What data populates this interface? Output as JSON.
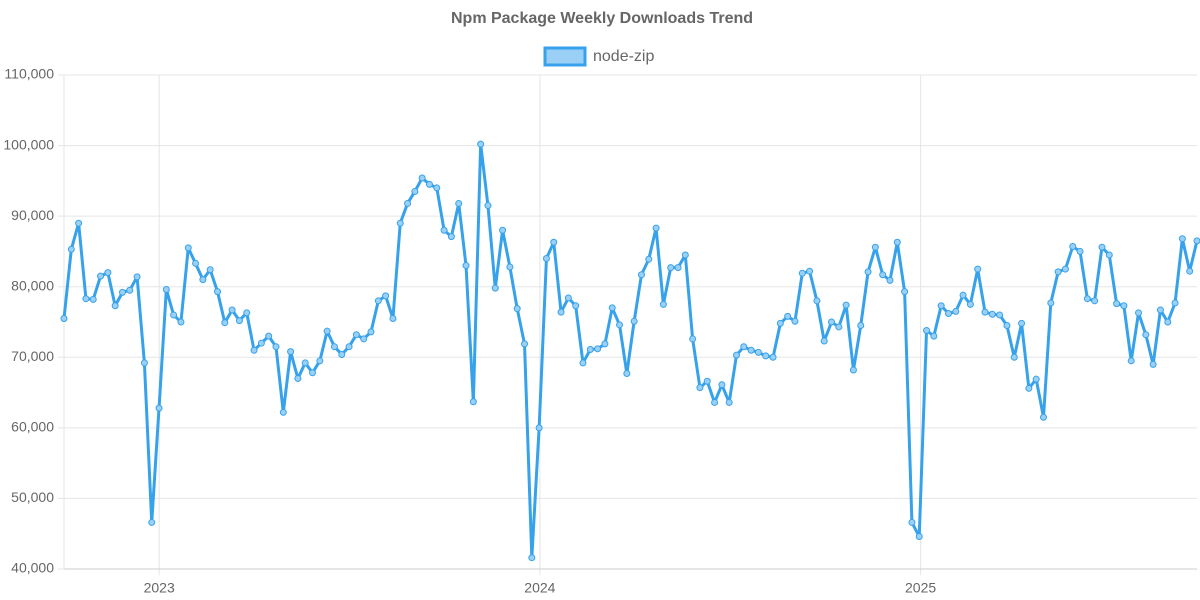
{
  "chart_data": {
    "type": "line",
    "title": "Npm Package Weekly Downloads Trend",
    "x": [
      2022.75,
      2022.7692,
      2022.7884,
      2022.8076,
      2022.8268,
      2022.846,
      2022.8652,
      2022.8844,
      2022.9036,
      2022.9228,
      2022.942,
      2022.9612,
      2022.9804,
      2022.9996,
      2023.0188,
      2023.038,
      2023.0572,
      2023.0764,
      2023.0956,
      2023.1148,
      2023.134,
      2023.1532,
      2023.1724,
      2023.1916,
      2023.2108,
      2023.23,
      2023.2492,
      2023.2684,
      2023.2876,
      2023.3068,
      2023.326,
      2023.3452,
      2023.3644,
      2023.3836,
      2023.4028,
      2023.422,
      2023.4412,
      2023.4604,
      2023.4796,
      2023.4988,
      2023.518,
      2023.5372,
      2023.5564,
      2023.5756,
      2023.5948,
      2023.614,
      2023.6332,
      2023.6524,
      2023.6716,
      2023.6908,
      2023.71,
      2023.7292,
      2023.7484,
      2023.7676,
      2023.7868,
      2023.806,
      2023.8252,
      2023.8444,
      2023.8636,
      2023.8828,
      2023.902,
      2023.9212,
      2023.9404,
      2023.9596,
      2023.9788,
      2023.998,
      2024.0172,
      2024.0364,
      2024.0556,
      2024.0748,
      2024.094,
      2024.1132,
      2024.1324,
      2024.1516,
      2024.1708,
      2024.19,
      2024.2092,
      2024.2284,
      2024.2476,
      2024.2668,
      2024.286,
      2024.3052,
      2024.3244,
      2024.3436,
      2024.3628,
      2024.382,
      2024.4012,
      2024.4204,
      2024.4396,
      2024.4588,
      2024.478,
      2024.4972,
      2024.5164,
      2024.5356,
      2024.5548,
      2024.574,
      2024.5932,
      2024.6124,
      2024.6316,
      2024.6508,
      2024.67,
      2024.6892,
      2024.7084,
      2024.7276,
      2024.7468,
      2024.766,
      2024.7852,
      2024.8044,
      2024.8236,
      2024.8428,
      2024.862,
      2024.8812,
      2024.9004,
      2024.9196,
      2024.9388,
      2024.958,
      2024.9772,
      2024.9964,
      2025.0156,
      2025.0348,
      2025.054,
      2025.0732,
      2025.0924,
      2025.1116,
      2025.1308,
      2025.15,
      2025.1692,
      2025.1884,
      2025.2076,
      2025.2268,
      2025.246,
      2025.2652,
      2025.2844,
      2025.3036,
      2025.3228,
      2025.342,
      2025.3612,
      2025.3804,
      2025.3996,
      2025.4188,
      2025.438,
      2025.4572,
      2025.4764,
      2025.4956,
      2025.5148,
      2025.534,
      2025.5532,
      2025.5724,
      2025.5916,
      2025.6108,
      2025.63,
      2025.6492,
      2025.6684,
      2025.6876,
      2025.7068,
      2025.726
    ],
    "series": [
      {
        "name": "node-zip",
        "color": "#36a2eb",
        "fill": "#9ad0f5",
        "values": [
          75500,
          85300,
          89000,
          78300,
          78200,
          81500,
          82000,
          77300,
          79200,
          79500,
          81400,
          69200,
          46600,
          62800,
          79600,
          76000,
          75000,
          85500,
          83300,
          81000,
          82400,
          79300,
          74900,
          76700,
          75200,
          76300,
          71000,
          72000,
          73000,
          71500,
          62200,
          70800,
          67000,
          69200,
          67800,
          69500,
          73700,
          71500,
          70400,
          71500,
          73200,
          72600,
          73600,
          78000,
          78700,
          75500,
          89000,
          91800,
          93500,
          95400,
          94500,
          94000,
          88000,
          87100,
          91800,
          83000,
          63700,
          100200,
          91500,
          79800,
          88000,
          82800,
          76900,
          71900,
          41600,
          60000,
          84000,
          86300,
          76400,
          78400,
          77300,
          69200,
          71100,
          71200,
          71900,
          77000,
          74600,
          67700,
          75100,
          81700,
          83900,
          88300,
          77500,
          82700,
          82700,
          84500,
          72600,
          65700,
          66600,
          63600,
          66100,
          63600,
          70300,
          71500,
          71000,
          70700,
          70200,
          70000,
          74800,
          75800,
          75100,
          81900,
          82200,
          78000,
          72300,
          75000,
          74300,
          77400,
          68200,
          74500,
          82100,
          85600,
          81700,
          80900,
          86300,
          79300,
          46600,
          44600,
          73800,
          73000,
          77300,
          76200,
          76500,
          78800,
          77500,
          82500,
          76400,
          76100,
          76000,
          74500,
          70000,
          74800,
          65600,
          66900,
          61500,
          77700,
          82100,
          82500,
          85700,
          85000,
          78300,
          78000,
          85600,
          84500,
          77600,
          77300,
          69500,
          76300,
          73200,
          69000,
          76700,
          75000,
          77700,
          86800,
          82200,
          86500
        ]
      }
    ],
    "xlim": [
      2022.75,
      2025.726
    ],
    "xticks": [
      2023,
      2024,
      2025
    ],
    "ylim": [
      40000,
      110000
    ],
    "yticks": [
      {
        "value": 40000,
        "label": "40,000"
      },
      {
        "value": 50000,
        "label": "50,000"
      },
      {
        "value": 60000,
        "label": "60,000"
      },
      {
        "value": 70000,
        "label": "70,000"
      },
      {
        "value": 80000,
        "label": "80,000"
      },
      {
        "value": 90000,
        "label": "90,000"
      },
      {
        "value": 100000,
        "label": "100,000"
      },
      {
        "value": 110000,
        "label": "110,000"
      }
    ],
    "grid": true,
    "legend": "top"
  }
}
